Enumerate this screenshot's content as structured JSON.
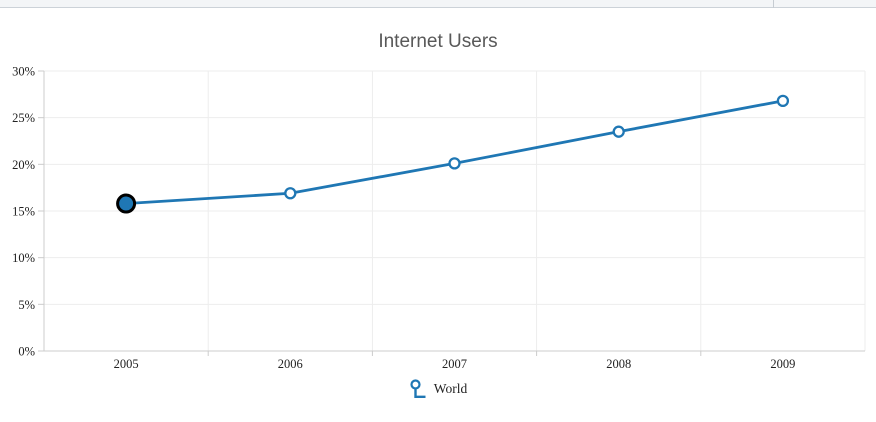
{
  "chart_data": {
    "type": "line",
    "title": "Internet Users",
    "categories": [
      "2005",
      "2006",
      "2007",
      "2008",
      "2009"
    ],
    "series": [
      {
        "name": "World",
        "values": [
          15.8,
          16.9,
          20.1,
          23.5,
          26.8
        ],
        "color": "#1f77b4",
        "marker": "circle-open",
        "selected_point_index": 0,
        "selected_point_ring_color": "#000000"
      }
    ],
    "xlabel": "",
    "ylabel": "",
    "ylim": [
      0,
      30
    ],
    "ytick_step": 5,
    "ytick_labels": [
      "0%",
      "5%",
      "10%",
      "15%",
      "20%",
      "25%",
      "30%"
    ],
    "grid": true,
    "legend_position": "bottom",
    "colors": {
      "grid": "#ededed",
      "axis": "#cccccc",
      "tick_text": "#222222",
      "title_text": "#595959"
    }
  },
  "legend": {
    "items": [
      {
        "label": "World"
      }
    ]
  }
}
